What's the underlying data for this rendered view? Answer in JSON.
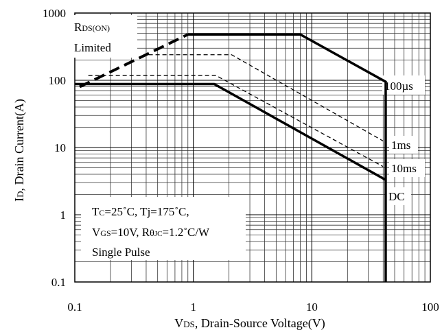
{
  "chart_data": {
    "type": "line",
    "xlabel": {
      "main": "V",
      "sub": "DS",
      "rest": ", Drain-Source Voltage(V)"
    },
    "ylabel": {
      "main": "I",
      "sub": "D",
      "rest": ", Drain Current(A)"
    },
    "xscale": "log",
    "yscale": "log",
    "xlim": [
      0.1,
      100
    ],
    "ylim": [
      0.1,
      1000
    ],
    "grid": true,
    "xtick_labels": [
      "0.1",
      "1",
      "10",
      "100"
    ],
    "ytick_labels": [
      "0.1",
      "1",
      "10",
      "100",
      "1000"
    ],
    "rds_label": {
      "line1_main": "R",
      "line1_sub": "DS(ON)",
      "line2": "Limited"
    },
    "rds_limit_line": {
      "x": [
        0.11,
        0.9
      ],
      "y": [
        80,
        480
      ]
    },
    "vertical_limit_x": 42,
    "series": [
      {
        "name": "100µs",
        "style": "thick",
        "x": [
          0.9,
          8,
          42,
          42
        ],
        "y": [
          480,
          480,
          95,
          0.1
        ]
      },
      {
        "name": "1ms",
        "style": "dashed",
        "x": [
          0.42,
          2.1,
          40
        ],
        "y": [
          240,
          240,
          12.5
        ]
      },
      {
        "name": "10ms",
        "style": "dashed",
        "x": [
          0.13,
          1.55,
          40
        ],
        "y": [
          118,
          118,
          5.2
        ]
      },
      {
        "name": "DC",
        "style": "thick",
        "x": [
          0.1,
          1.5,
          42
        ],
        "y": [
          88,
          88,
          3.3
        ]
      }
    ],
    "annotation": {
      "line1": {
        "a": "T",
        "a_sub": "C",
        "b": "=25˚C, Tj=175˚C,"
      },
      "line2": {
        "a": "V",
        "a_sub": "GS",
        "b": "=10V, R",
        "theta": "θ",
        "b_sub": "JC",
        "c": "=1.2˚C/W"
      },
      "line3": "Single Pulse"
    }
  }
}
